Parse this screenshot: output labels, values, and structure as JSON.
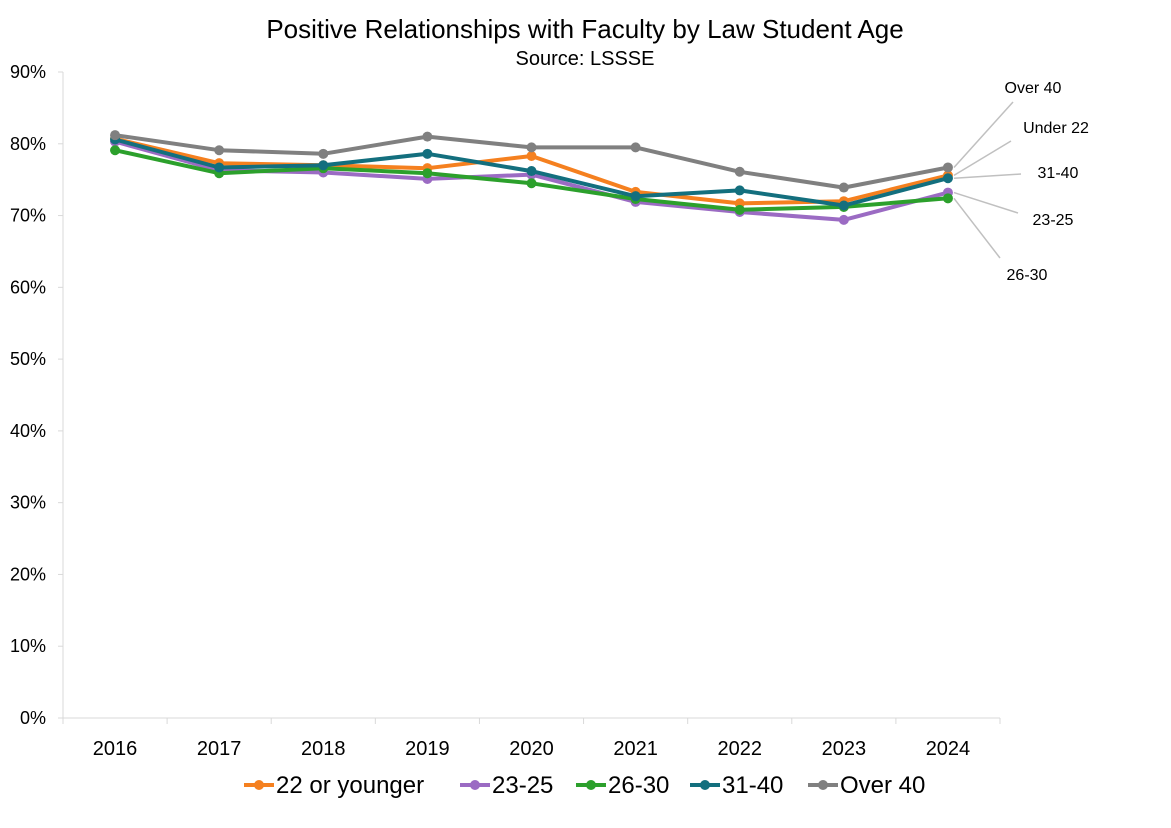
{
  "chart_data": {
    "type": "line",
    "title": "Positive Relationships with Faculty by Law Student Age",
    "subtitle": "Source: LSSSE",
    "xlabel": "",
    "ylabel": "",
    "x": [
      "2016",
      "2017",
      "2018",
      "2019",
      "2020",
      "2021",
      "2022",
      "2023",
      "2024"
    ],
    "ylim": [
      0,
      90
    ],
    "yticks": [
      0,
      10,
      20,
      30,
      40,
      50,
      60,
      70,
      80,
      90
    ],
    "ytick_labels": [
      "0%",
      "10%",
      "20%",
      "30%",
      "40%",
      "50%",
      "60%",
      "70%",
      "80%",
      "90%"
    ],
    "grid": false,
    "legend_position": "bottom",
    "series": [
      {
        "name": "22 or younger",
        "color": "#f5801f",
        "values": [
          80.7,
          77.3,
          77.0,
          76.6,
          78.3,
          73.3,
          71.7,
          72.0,
          75.6
        ]
      },
      {
        "name": "23-25",
        "color": "#9b6bc3",
        "values": [
          80.3,
          76.3,
          76.0,
          75.1,
          75.7,
          71.9,
          70.5,
          69.4,
          73.2
        ]
      },
      {
        "name": "26-30",
        "color": "#2ca02c",
        "values": [
          79.1,
          75.9,
          76.6,
          75.9,
          74.5,
          72.3,
          70.8,
          71.2,
          72.4
        ]
      },
      {
        "name": "31-40",
        "color": "#136f7e",
        "values": [
          80.6,
          76.7,
          77.0,
          78.6,
          76.2,
          72.7,
          73.5,
          71.4,
          75.2
        ]
      },
      {
        "name": "Over 40",
        "color": "#808080",
        "values": [
          81.2,
          79.1,
          78.6,
          81.0,
          79.5,
          79.5,
          76.1,
          73.9,
          76.7
        ]
      }
    ],
    "annotations": [
      {
        "text": "Over 40",
        "series": "Over 40"
      },
      {
        "text": "Under 22",
        "series": "22 or younger"
      },
      {
        "text": "31-40",
        "series": "31-40"
      },
      {
        "text": "23-25",
        "series": "23-25"
      },
      {
        "text": "26-30",
        "series": "26-30"
      }
    ],
    "callout_line_color": "#c0c0c0",
    "axis_color": "#d9d9d9"
  }
}
